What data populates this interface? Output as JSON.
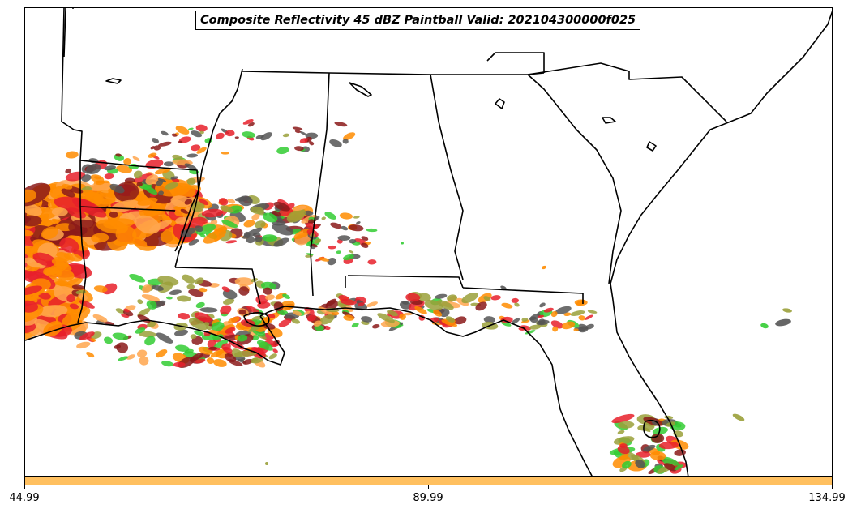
{
  "title": "Composite Reflectivity 45 dBZ Paintball Valid: 202104300000f025",
  "colorbar": {
    "color": "#ffc060",
    "ticks": [
      "44.99",
      "89.99",
      "134.99"
    ]
  },
  "colors": {
    "orange": "#ff8c00",
    "light_orange": "#ffa64d",
    "red": "#e8202a",
    "dark_red": "#8b1a1a",
    "green": "#33cc33",
    "olive": "#9aa03a",
    "gray": "#555555"
  }
}
